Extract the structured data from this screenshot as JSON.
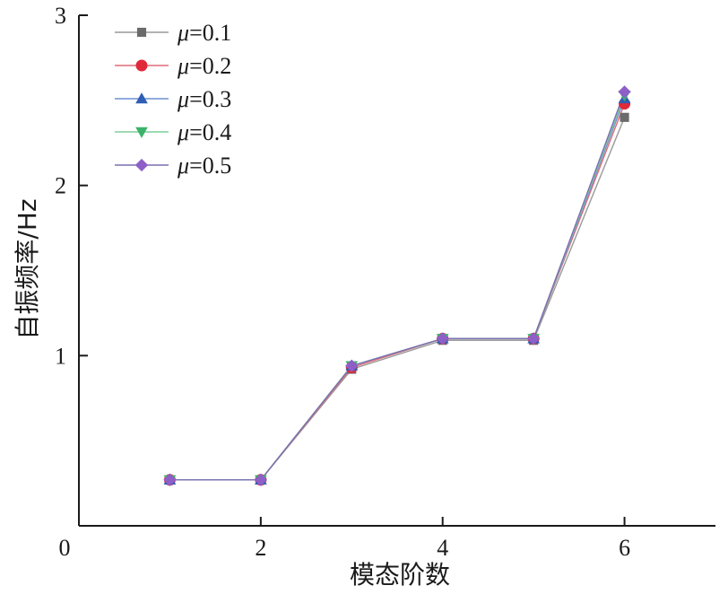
{
  "chart_data": {
    "type": "line",
    "title": "",
    "xlabel": "模态阶数",
    "ylabel": "自振频率/Hz",
    "xlim": [
      0,
      7
    ],
    "ylim": [
      0,
      3
    ],
    "x_ticks": [
      0,
      2,
      4,
      6
    ],
    "y_ticks": [
      1,
      2,
      3
    ],
    "x_tick_labels": [
      "0",
      "2",
      "4",
      "6"
    ],
    "y_tick_labels": [
      "1",
      "2",
      "3"
    ],
    "grid": false,
    "legend_position": "top-left",
    "x": [
      1,
      2,
      3,
      4,
      5,
      6
    ],
    "series": [
      {
        "name": "=0.1",
        "symbol": "μ",
        "value_text": "=0.1",
        "marker": "square",
        "color": "#6b6b6b",
        "line_color": "#9a9a9a",
        "values": [
          0.27,
          0.27,
          0.92,
          1.09,
          1.09,
          2.4
        ]
      },
      {
        "name": "=0.2",
        "symbol": "μ",
        "value_text": "=0.2",
        "marker": "circle",
        "color": "#e0293a",
        "line_color": "#e06b78",
        "values": [
          0.27,
          0.27,
          0.93,
          1.1,
          1.1,
          2.48
        ]
      },
      {
        "name": "=0.3",
        "symbol": "μ",
        "value_text": "=0.3",
        "marker": "triangle-up",
        "color": "#2f5fb5",
        "line_color": "#6f8fd0",
        "values": [
          0.27,
          0.27,
          0.94,
          1.1,
          1.1,
          2.51
        ]
      },
      {
        "name": "=0.4",
        "symbol": "μ",
        "value_text": "=0.4",
        "marker": "triangle-down",
        "color": "#3bb36a",
        "line_color": "#7fcf9a",
        "values": [
          0.27,
          0.27,
          0.94,
          1.1,
          1.1,
          2.53
        ]
      },
      {
        "name": "=0.5",
        "symbol": "μ",
        "value_text": "=0.5",
        "marker": "diamond",
        "color": "#8e5fc7",
        "line_color": "#7a6fb0",
        "values": [
          0.27,
          0.27,
          0.94,
          1.1,
          1.1,
          2.55
        ]
      }
    ]
  }
}
